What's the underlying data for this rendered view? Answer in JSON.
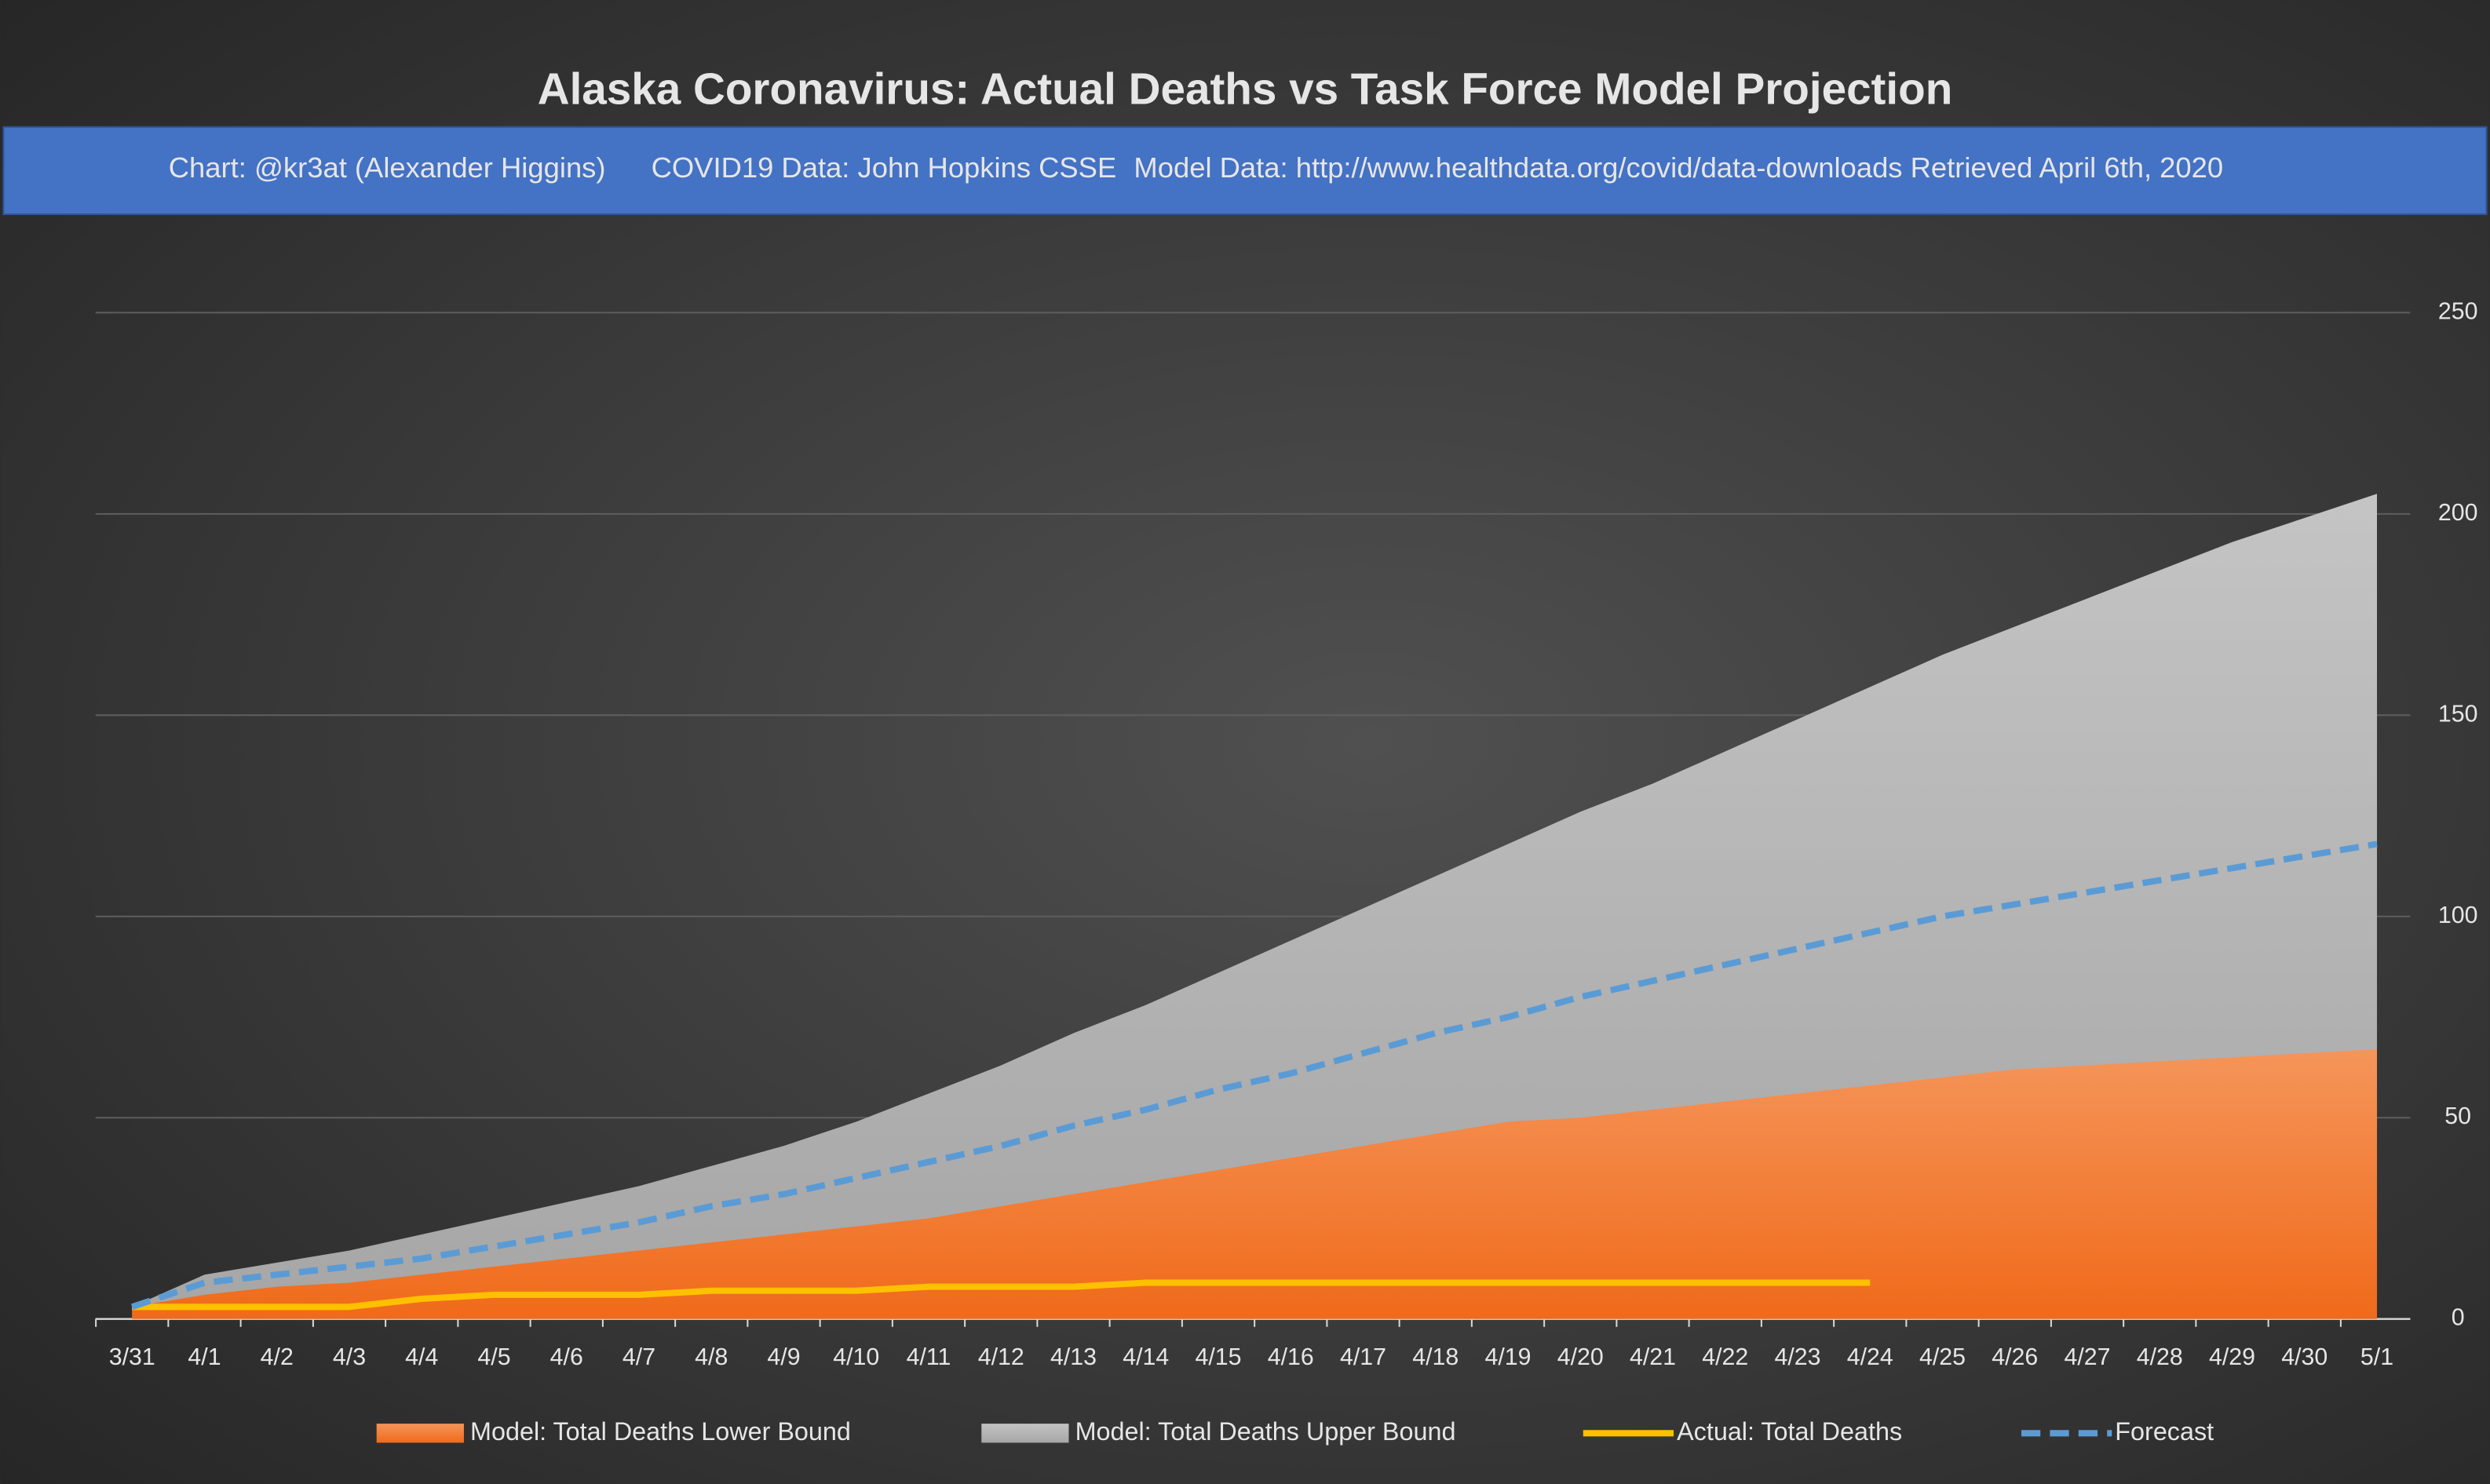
{
  "chart_data": {
    "type": "area-line",
    "title": "Alaska Coronavirus: Actual Deaths vs Task Force Model Projection",
    "subtitle": [
      "Chart: @kr3at (Alexander Higgins)",
      "COVID19 Data: John Hopkins CSSE",
      "Model Data: http://www.healthdata.org/covid/data-downloads Retrieved April 6th, 2020"
    ],
    "categories": [
      "3/31",
      "4/1",
      "4/2",
      "4/3",
      "4/4",
      "4/5",
      "4/6",
      "4/7",
      "4/8",
      "4/9",
      "4/10",
      "4/11",
      "4/12",
      "4/13",
      "4/14",
      "4/15",
      "4/16",
      "4/17",
      "4/18",
      "4/19",
      "4/20",
      "4/21",
      "4/22",
      "4/23",
      "4/24",
      "4/25",
      "4/26",
      "4/27",
      "4/28",
      "4/29",
      "4/30",
      "5/1"
    ],
    "series": [
      {
        "name": "Model: Total Deaths Lower Bound",
        "kind": "area",
        "color": "#f07a2c",
        "values": [
          3,
          6,
          8,
          9,
          11,
          13,
          15,
          17,
          19,
          21,
          23,
          25,
          28,
          31,
          34,
          37,
          40,
          43,
          46,
          49,
          50,
          52,
          54,
          56,
          58,
          60,
          62,
          63,
          64,
          65,
          66,
          67
        ]
      },
      {
        "name": "Model: Total Deaths Upper Bound",
        "kind": "area",
        "color": "#b4b4b4",
        "values": [
          3,
          11,
          14,
          17,
          21,
          25,
          29,
          33,
          38,
          43,
          49,
          56,
          63,
          71,
          78,
          86,
          94,
          102,
          110,
          118,
          126,
          133,
          141,
          149,
          157,
          165,
          172,
          179,
          186,
          193,
          199,
          205
        ]
      },
      {
        "name": "Actual: Total Deaths",
        "kind": "line",
        "color": "#ffc000",
        "values": [
          3,
          3,
          3,
          3,
          5,
          6,
          6,
          6,
          7,
          7,
          7,
          8,
          8,
          8,
          9,
          9,
          9,
          9,
          9,
          9,
          9,
          9,
          9,
          9,
          9,
          null,
          null,
          null,
          null,
          null,
          null,
          null
        ]
      },
      {
        "name": "Forecast",
        "kind": "dashed-line",
        "color": "#5b9bd5",
        "values": [
          3,
          9,
          11,
          13,
          15,
          18,
          21,
          24,
          28,
          31,
          35,
          39,
          43,
          48,
          52,
          57,
          61,
          66,
          71,
          75,
          80,
          84,
          88,
          92,
          96,
          100,
          103,
          106,
          109,
          112,
          115,
          118
        ]
      }
    ],
    "ylim": [
      0,
      250
    ],
    "yticks": [
      0,
      50,
      100,
      150,
      200,
      250
    ],
    "grid": true,
    "legend": "bottom"
  }
}
